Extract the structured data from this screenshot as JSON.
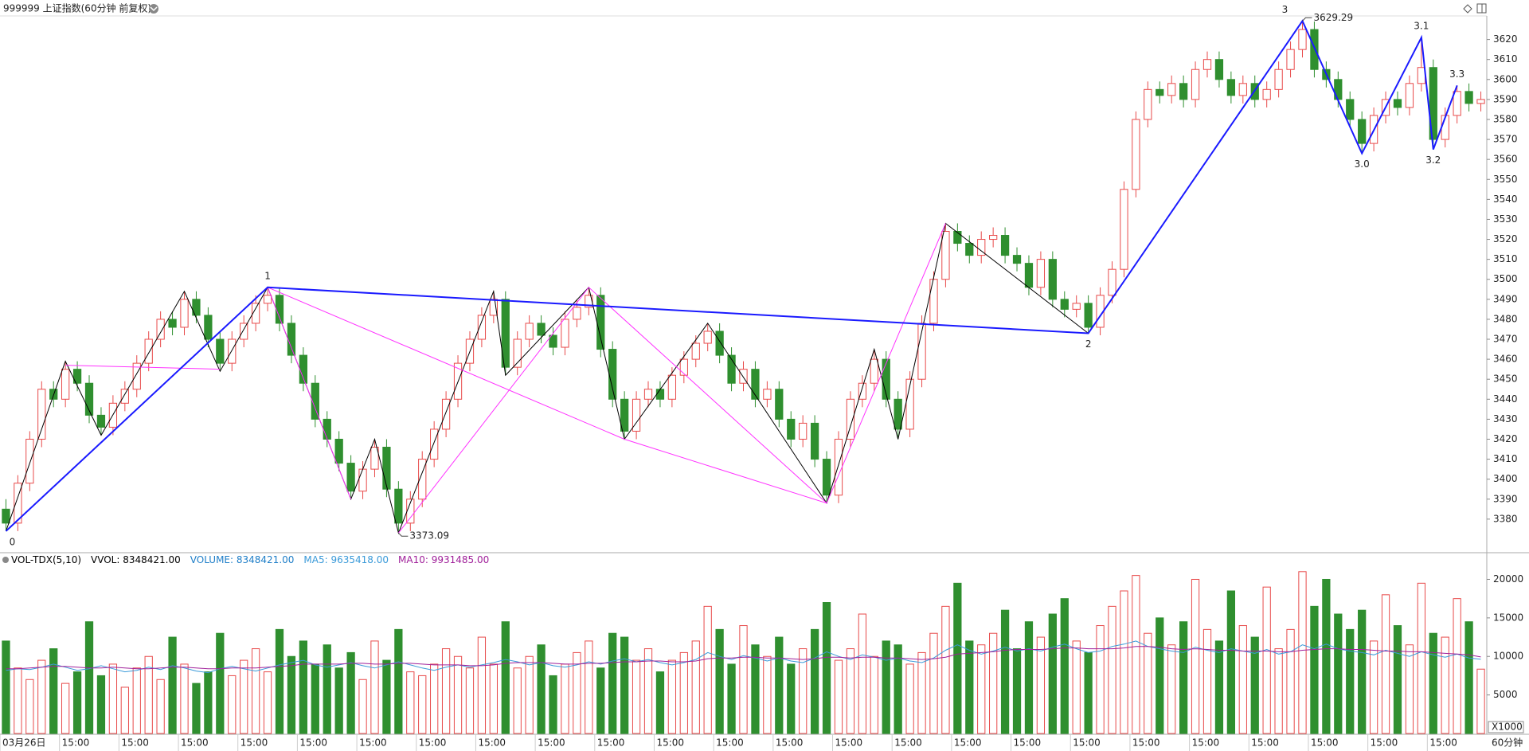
{
  "header": {
    "title": "999999 上证指数(60分钟 前复权)"
  },
  "chart_data": {
    "type": "candlestick",
    "categories": [
      "03月26日",
      null,
      null,
      null,
      null,
      "15:00",
      null,
      null,
      null,
      null,
      "15:00",
      null,
      null,
      null,
      null,
      "15:00",
      null,
      null,
      null,
      null,
      "15:00",
      null,
      null,
      null,
      null,
      "15:00",
      null,
      null,
      null,
      null,
      "15:00",
      null,
      null,
      null,
      null,
      "15:00",
      null,
      null,
      null,
      null,
      "15:00",
      null,
      null,
      null,
      null,
      "15:00",
      null,
      null,
      null,
      null,
      "15:00",
      null,
      null,
      null,
      null,
      "15:00",
      null,
      null,
      null,
      null,
      "15:00",
      null,
      null,
      null,
      null,
      "15:00",
      null,
      null,
      null,
      null,
      "15:00",
      null,
      null,
      null,
      null,
      "15:00",
      null,
      null,
      null,
      null,
      "15:00",
      null,
      null,
      null,
      null,
      "15:00",
      null,
      null,
      null,
      null,
      "15:00",
      null,
      null,
      null,
      null,
      "15:00",
      null,
      null,
      null,
      null,
      "15:00",
      null,
      null,
      null,
      null,
      "15:00",
      null,
      null,
      null,
      null,
      "15:00",
      null,
      null,
      null,
      null,
      "15:00",
      null,
      null,
      null,
      null,
      "15:00",
      null,
      null,
      null,
      null
    ],
    "open": [
      3385,
      3378,
      3398,
      3420,
      3445,
      3440,
      3455,
      3448,
      3432,
      3426,
      3438,
      3445,
      3458,
      3470,
      3480,
      3476,
      3490,
      3482,
      3470,
      3458,
      3470,
      3478,
      3488,
      3492,
      3478,
      3462,
      3448,
      3430,
      3420,
      3408,
      3394,
      3405,
      3416,
      3395,
      3378,
      3390,
      3410,
      3425,
      3440,
      3458,
      3470,
      3482,
      3490,
      3456,
      3470,
      3478,
      3472,
      3466,
      3480,
      3486,
      3492,
      3465,
      3440,
      3424,
      3440,
      3445,
      3440,
      3452,
      3460,
      3468,
      3474,
      3462,
      3448,
      3455,
      3440,
      3445,
      3430,
      3420,
      3428,
      3410,
      3392,
      3420,
      3440,
      3448,
      3460,
      3440,
      3425,
      3450,
      3478,
      3500,
      3524,
      3518,
      3512,
      3520,
      3522,
      3512,
      3508,
      3496,
      3510,
      3490,
      3485,
      3488,
      3476,
      3492,
      3505,
      3545,
      3580,
      3595,
      3592,
      3598,
      3590,
      3605,
      3610,
      3600,
      3592,
      3598,
      3590,
      3595,
      3605,
      3615,
      3625,
      3605,
      3600,
      3590,
      3580,
      3568,
      3582,
      3590,
      3586,
      3598,
      3606,
      3570,
      3582,
      3594,
      3588
    ],
    "high": [
      3390,
      3402,
      3424,
      3449,
      3449,
      3459,
      3459,
      3452,
      3436,
      3442,
      3449,
      3462,
      3474,
      3484,
      3484,
      3494,
      3494,
      3486,
      3474,
      3474,
      3482,
      3492,
      3496,
      3496,
      3482,
      3466,
      3452,
      3434,
      3424,
      3412,
      3409,
      3420,
      3420,
      3399,
      3394,
      3414,
      3429,
      3444,
      3462,
      3474,
      3486,
      3494,
      3494,
      3474,
      3482,
      3482,
      3476,
      3484,
      3490,
      3496,
      3496,
      3469,
      3444,
      3444,
      3449,
      3449,
      3456,
      3464,
      3472,
      3478,
      3478,
      3466,
      3459,
      3459,
      3449,
      3449,
      3434,
      3432,
      3432,
      3414,
      3424,
      3444,
      3452,
      3465,
      3464,
      3444,
      3454,
      3482,
      3504,
      3528,
      3528,
      3522,
      3524,
      3526,
      3526,
      3516,
      3512,
      3514,
      3514,
      3494,
      3492,
      3492,
      3496,
      3509,
      3549,
      3584,
      3599,
      3599,
      3602,
      3602,
      3609,
      3614,
      3614,
      3604,
      3602,
      3602,
      3599,
      3609,
      3619,
      3629.29,
      3629,
      3609,
      3604,
      3594,
      3584,
      3586,
      3594,
      3594,
      3602,
      3621,
      3610,
      3586,
      3597,
      3598,
      3594
    ],
    "low": [
      3374,
      3374,
      3394,
      3416,
      3436,
      3436,
      3444,
      3428,
      3422,
      3422,
      3434,
      3441,
      3454,
      3466,
      3472,
      3472,
      3478,
      3466,
      3454,
      3454,
      3466,
      3474,
      3484,
      3474,
      3458,
      3444,
      3426,
      3416,
      3404,
      3390,
      3390,
      3401,
      3391,
      3373.09,
      3374,
      3386,
      3406,
      3421,
      3436,
      3454,
      3466,
      3478,
      3452,
      3452,
      3466,
      3468,
      3462,
      3462,
      3476,
      3482,
      3461,
      3436,
      3420,
      3420,
      3436,
      3436,
      3436,
      3448,
      3456,
      3464,
      3458,
      3444,
      3444,
      3436,
      3436,
      3426,
      3416,
      3416,
      3406,
      3388,
      3388,
      3416,
      3436,
      3444,
      3436,
      3420,
      3421,
      3446,
      3474,
      3496,
      3514,
      3508,
      3508,
      3516,
      3508,
      3504,
      3492,
      3492,
      3486,
      3481,
      3481,
      3473,
      3472,
      3488,
      3501,
      3541,
      3576,
      3588,
      3588,
      3586,
      3586,
      3601,
      3596,
      3588,
      3588,
      3586,
      3586,
      3591,
      3601,
      3611,
      3601,
      3596,
      3586,
      3576,
      3563,
      3564,
      3578,
      3582,
      3582,
      3594,
      3565,
      3566,
      3578,
      3584,
      3584
    ],
    "close": [
      3378,
      3398,
      3420,
      3445,
      3440,
      3455,
      3448,
      3432,
      3426,
      3438,
      3445,
      3458,
      3470,
      3480,
      3476,
      3490,
      3482,
      3470,
      3458,
      3470,
      3478,
      3488,
      3492,
      3478,
      3462,
      3448,
      3430,
      3420,
      3408,
      3394,
      3405,
      3416,
      3395,
      3378,
      3390,
      3410,
      3425,
      3440,
      3458,
      3470,
      3482,
      3490,
      3456,
      3470,
      3478,
      3472,
      3466,
      3480,
      3486,
      3492,
      3465,
      3440,
      3424,
      3440,
      3445,
      3440,
      3452,
      3460,
      3468,
      3474,
      3462,
      3448,
      3455,
      3440,
      3445,
      3430,
      3420,
      3428,
      3410,
      3392,
      3420,
      3440,
      3448,
      3460,
      3440,
      3425,
      3450,
      3478,
      3500,
      3524,
      3518,
      3512,
      3520,
      3522,
      3512,
      3508,
      3496,
      3510,
      3490,
      3485,
      3488,
      3476,
      3492,
      3505,
      3545,
      3580,
      3595,
      3592,
      3598,
      3590,
      3605,
      3610,
      3600,
      3592,
      3598,
      3590,
      3595,
      3605,
      3615,
      3625,
      3605,
      3600,
      3590,
      3580,
      3568,
      3582,
      3590,
      3586,
      3598,
      3606,
      3570,
      3582,
      3594,
      3588,
      3590
    ],
    "up_color": "#e84a4a",
    "down_color": "#2f8f2f",
    "ylim": [
      3364,
      3631
    ],
    "yticks": [
      3380,
      3390,
      3400,
      3410,
      3420,
      3430,
      3440,
      3450,
      3460,
      3470,
      3480,
      3490,
      3500,
      3510,
      3520,
      3530,
      3540,
      3550,
      3560,
      3570,
      3580,
      3590,
      3600,
      3610,
      3620
    ],
    "overlays": [
      {
        "color": "#000000",
        "index": [
          0,
          5,
          8,
          15,
          18,
          22,
          29,
          31,
          33,
          41,
          42,
          49,
          52,
          59,
          69,
          73,
          75,
          79,
          91
        ],
        "price": [
          3374,
          3459,
          3422,
          3494,
          3454,
          3496,
          3390,
          3420,
          3373.09,
          3494,
          3452,
          3496,
          3420,
          3478,
          3388,
          3465,
          3420,
          3528,
          3473
        ]
      },
      {
        "color": "#ff33ff",
        "index": [
          5,
          18
        ],
        "price": [
          3457,
          3455
        ]
      },
      {
        "color": "#ff33ff",
        "index": [
          29,
          22,
          52,
          69,
          79
        ],
        "price": [
          3390,
          3496,
          3420,
          3388,
          3528
        ]
      },
      {
        "color": "#ff33ff",
        "index": [
          33,
          49,
          69
        ],
        "price": [
          3373.09,
          3496,
          3388
        ]
      },
      {
        "color": "#1a1aff",
        "index": [
          0,
          22,
          91,
          109,
          114,
          119,
          120,
          122
        ],
        "price": [
          3374,
          3496,
          3473,
          3629.29,
          3563,
          3621,
          3565,
          3597
        ],
        "labels": [
          "0",
          "1",
          "2",
          "3",
          "3.0",
          "3.1",
          "3.2",
          "3.3"
        ]
      }
    ],
    "volume_panel": {
      "title": "VOL-TDX(5,10)",
      "vvol": "VVOL: 8348421.00",
      "ylim": [
        0,
        21600
      ],
      "yticks": [
        5000,
        10000,
        15000,
        20000
      ],
      "unit": "X1000",
      "period": "60分钟",
      "volume": {
        "legend": "VOLUME: 8348421.00",
        "color": "#1e7ec8",
        "values": [
          12000,
          8500,
          7000,
          9500,
          11000,
          6500,
          8000,
          14500,
          7500,
          9000,
          6000,
          8500,
          10000,
          7000,
          12500,
          9000,
          6500,
          8000,
          13000,
          7500,
          9500,
          11000,
          8000,
          13500,
          10000,
          12000,
          9000,
          11500,
          8500,
          10500,
          7000,
          12000,
          9500,
          13500,
          8000,
          7500,
          9000,
          11000,
          10000,
          8500,
          12500,
          9000,
          14500,
          8500,
          10000,
          11500,
          7500,
          9000,
          10500,
          12000,
          8500,
          13000,
          12500,
          9500,
          11000,
          8000,
          9500,
          10500,
          12000,
          16500,
          13500,
          9000,
          14000,
          11500,
          10000,
          12500,
          9000,
          11000,
          13500,
          17000,
          9500,
          11000,
          15500,
          10000,
          12000,
          11500,
          9000,
          10500,
          13000,
          16500,
          19500,
          12000,
          11500,
          13000,
          16000,
          11000,
          14500,
          12500,
          15500,
          17500,
          12000,
          10500,
          14000,
          16500,
          18500,
          20500,
          13000,
          15000,
          11500,
          14500,
          20000,
          13500,
          12000,
          18500,
          14000,
          12500,
          19000,
          11000,
          13500,
          21000,
          16500,
          20000,
          15500,
          13500,
          16000,
          12000,
          18000,
          14000,
          11500,
          19500,
          13000,
          12500,
          17500,
          14500,
          8348.421
        ]
      },
      "ma5": {
        "legend": "MA5: 9635418.00",
        "color": "#3a9ad9",
        "values": [
          8200,
          8400,
          8300,
          8600,
          9000,
          8600,
          8200,
          8400,
          8800,
          8400,
          8000,
          8200,
          8600,
          8300,
          8800,
          8500,
          8100,
          7900,
          8400,
          8700,
          8400,
          8100,
          8500,
          8900,
          9200,
          9500,
          8900,
          8600,
          8900,
          9200,
          8800,
          8500,
          8900,
          9300,
          8900,
          8500,
          8200,
          8600,
          8900,
          8600,
          8900,
          9200,
          9600,
          9300,
          8900,
          9200,
          8800,
          8600,
          8900,
          9300,
          9000,
          9400,
          9700,
          9300,
          9600,
          9200,
          8900,
          9200,
          9600,
          10500,
          10000,
          9600,
          10100,
          9800,
          9400,
          9800,
          9400,
          9200,
          9800,
          10600,
          10000,
          9600,
          10200,
          9900,
          9500,
          9800,
          9400,
          9200,
          9800,
          10800,
          11500,
          10800,
          10300,
          10700,
          11200,
          10700,
          11000,
          10700,
          11200,
          11600,
          11000,
          10500,
          10700,
          11300,
          11600,
          12000,
          11300,
          11000,
          10700,
          10500,
          11200,
          10800,
          10500,
          11000,
          10700,
          10400,
          10900,
          10300,
          10600,
          11500,
          11000,
          11600,
          11000,
          10700,
          10500,
          10200,
          10800,
          10400,
          10000,
          10600,
          10200,
          9900,
          10300,
          9800,
          9635.418
        ]
      },
      "ma10": {
        "legend": "MA10: 9931485.00",
        "color": "#a0209a",
        "values": [
          8400,
          8400,
          8500,
          8600,
          8700,
          8700,
          8600,
          8500,
          8500,
          8600,
          8500,
          8400,
          8400,
          8500,
          8600,
          8600,
          8500,
          8400,
          8400,
          8500,
          8500,
          8500,
          8600,
          8700,
          8800,
          9000,
          9000,
          9000,
          9000,
          9100,
          9100,
          9000,
          9000,
          9100,
          9100,
          9000,
          8900,
          8900,
          8900,
          8800,
          8800,
          8900,
          9100,
          9200,
          9200,
          9200,
          9100,
          9000,
          9000,
          9100,
          9100,
          9200,
          9300,
          9300,
          9400,
          9400,
          9300,
          9300,
          9400,
          9700,
          9800,
          9800,
          9900,
          9900,
          9800,
          9800,
          9700,
          9600,
          9700,
          9900,
          9900,
          9800,
          9900,
          9900,
          9800,
          9800,
          9700,
          9600,
          9700,
          9900,
          10300,
          10400,
          10500,
          10600,
          10800,
          10900,
          10900,
          10900,
          11000,
          11100,
          11100,
          11000,
          11000,
          11000,
          11100,
          11300,
          11300,
          11200,
          11000,
          10900,
          11000,
          10900,
          10800,
          10800,
          10700,
          10700,
          10700,
          10600,
          10600,
          10800,
          10900,
          11000,
          11000,
          10900,
          10900,
          10800,
          10700,
          10700,
          10600,
          10600,
          10500,
          10400,
          10300,
          10200,
          9931.485
        ]
      }
    }
  }
}
